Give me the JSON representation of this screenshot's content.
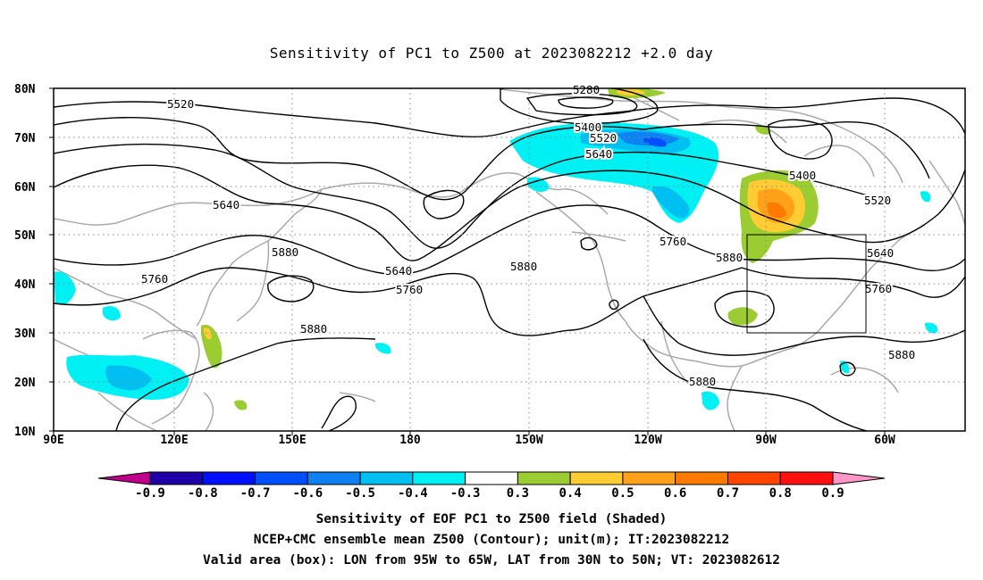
{
  "title": "Sensitivity of PC1 to Z500 at 2023082212 +2.0 day",
  "lat_labels": [
    "80N",
    "70N",
    "60N",
    "50N",
    "40N",
    "30N",
    "20N",
    "10N"
  ],
  "lon_labels": [
    "90E",
    "120E",
    "150E",
    "180",
    "150W",
    "120W",
    "90W",
    "60W"
  ],
  "contour_labels": [
    "5280",
    "5400",
    "5520",
    "5640",
    "5520",
    "5640",
    "5760",
    "5880",
    "5640",
    "5760",
    "5880",
    "5760",
    "5880",
    "5400",
    "5520",
    "5640",
    "5760",
    "5880",
    "5880",
    "5760"
  ],
  "colorbar": {
    "labels": [
      "-0.9",
      "-0.8",
      "-0.7",
      "-0.6",
      "-0.5",
      "-0.4",
      "-0.3",
      "0.3",
      "0.4",
      "0.5",
      "0.6",
      "0.7",
      "0.8",
      "0.9"
    ],
    "colors": [
      "#1f00a8",
      "#0010ff",
      "#0050ff",
      "#0d82f2",
      "#00c0f2",
      "#00f0f4",
      "#ffffff",
      "#9bcd32",
      "#ffcc33",
      "#ffa21a",
      "#ff7a00",
      "#ff4500",
      "#ff1010"
    ],
    "left_arrow_color": "#c0008a",
    "right_arrow_color": "#ff96c8"
  },
  "captions": [
    "Sensitivity of EOF PC1 to Z500 field (Shaded)",
    "NCEP+CMC ensemble mean Z500 (Contour); unit(m); IT:2023082212",
    "Valid area (box): LON from 95W to 65W, LAT from 30N to 50N; VT: 2023082612"
  ]
}
